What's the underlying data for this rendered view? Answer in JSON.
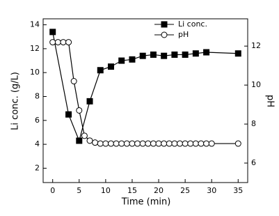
{
  "chart_data": {
    "type": "line",
    "xlabel": "Time (min)",
    "ylabel": "Li conc. (g/L)",
    "y2label": "pH",
    "xlim": [
      -1.8,
      36.8
    ],
    "xticks": [
      0,
      5,
      10,
      15,
      20,
      25,
      30,
      35
    ],
    "ylim": [
      0.8,
      14.5
    ],
    "yticks": [
      2,
      4,
      6,
      8,
      10,
      12,
      14
    ],
    "y2lim": [
      5,
      13.4
    ],
    "y2ticks": [
      6,
      8,
      10,
      12
    ],
    "grid": false,
    "legend": "upper right",
    "series": [
      {
        "name": "Li conc.",
        "color": "#000000",
        "marker": "square",
        "filled": true,
        "x": [
          0,
          3,
          5,
          7,
          9,
          11,
          13,
          15,
          17,
          19,
          21,
          23,
          25,
          27,
          29,
          35
        ],
        "values": [
          13.4,
          6.5,
          4.3,
          7.6,
          10.2,
          10.5,
          11.0,
          11.1,
          11.4,
          11.5,
          11.4,
          11.5,
          11.5,
          11.6,
          11.7,
          11.6
        ]
      },
      {
        "name": "pH",
        "color": "#000000",
        "marker": "circle",
        "filled": false,
        "axis": "y2",
        "x": [
          0,
          1,
          2,
          3,
          4,
          5,
          6,
          7,
          8,
          9,
          10,
          11,
          12,
          13,
          14,
          15,
          16,
          17,
          18,
          19,
          20,
          21,
          22,
          23,
          24,
          25,
          26,
          27,
          28,
          29,
          30,
          35
        ],
        "values": [
          12.2,
          12.2,
          12.2,
          12.2,
          10.2,
          8.7,
          7.4,
          7.15,
          7.05,
          7.0,
          7.0,
          7.0,
          7.0,
          7.0,
          7.0,
          7.0,
          7.0,
          7.0,
          7.0,
          7.0,
          7.0,
          7.0,
          7.0,
          7.0,
          7.0,
          7.0,
          7.0,
          7.0,
          7.0,
          7.0,
          7.0,
          7.0
        ]
      }
    ]
  }
}
